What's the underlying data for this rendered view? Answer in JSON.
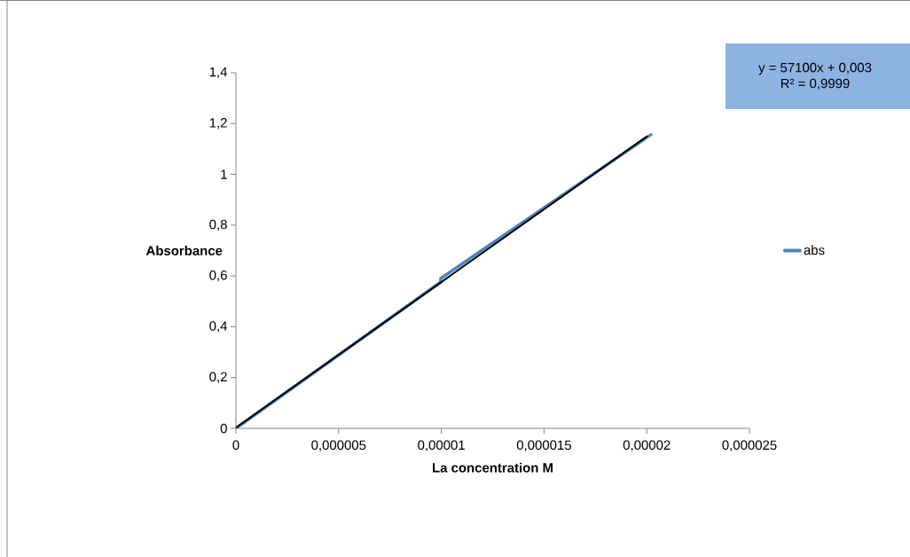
{
  "chart_data": {
    "type": "line",
    "xlabel": "La concentration M",
    "ylabel": "Absorbance",
    "series": [
      {
        "name": "abs",
        "color": "#4f81bd",
        "x": [
          0,
          9.97e-06,
          9.97e-06,
          2.02e-05
        ],
        "values": [
          0,
          0.576,
          0.59,
          1.156
        ]
      },
      {
        "type": "line",
        "color": "#000000",
        "x": [
          0,
          2e-05
        ],
        "values": [
          0.003,
          1.149
        ]
      }
    ],
    "xlim": [
      0,
      2.5e-05
    ],
    "ylim": [
      0,
      1.4
    ],
    "xticks": [
      0,
      {
        "value": 5e-06,
        "label": "0,000005"
      },
      {
        "value": 1e-05,
        "label": "0,00001"
      },
      {
        "value": 1.5e-05,
        "label": "0,000015"
      },
      {
        "value": 2e-05,
        "label": "0,00002"
      },
      {
        "value": 2.5e-05,
        "label": "0,000025"
      }
    ],
    "yticks": [
      0,
      {
        "value": 0.2,
        "label": "0,2"
      },
      {
        "value": 0.4,
        "label": "0,4"
      },
      {
        "value": 0.6,
        "label": "0,6"
      },
      {
        "value": 0.8,
        "label": "0,8"
      },
      1,
      {
        "value": 1.2,
        "label": "1,2"
      },
      {
        "value": 1.4,
        "label": "1,4"
      }
    ],
    "annotations": [
      "y = 57100x + 0,003",
      "R² = 0,9999"
    ],
    "legend": "right",
    "grid": false,
    "marker": "none",
    "line_style": "solid"
  }
}
